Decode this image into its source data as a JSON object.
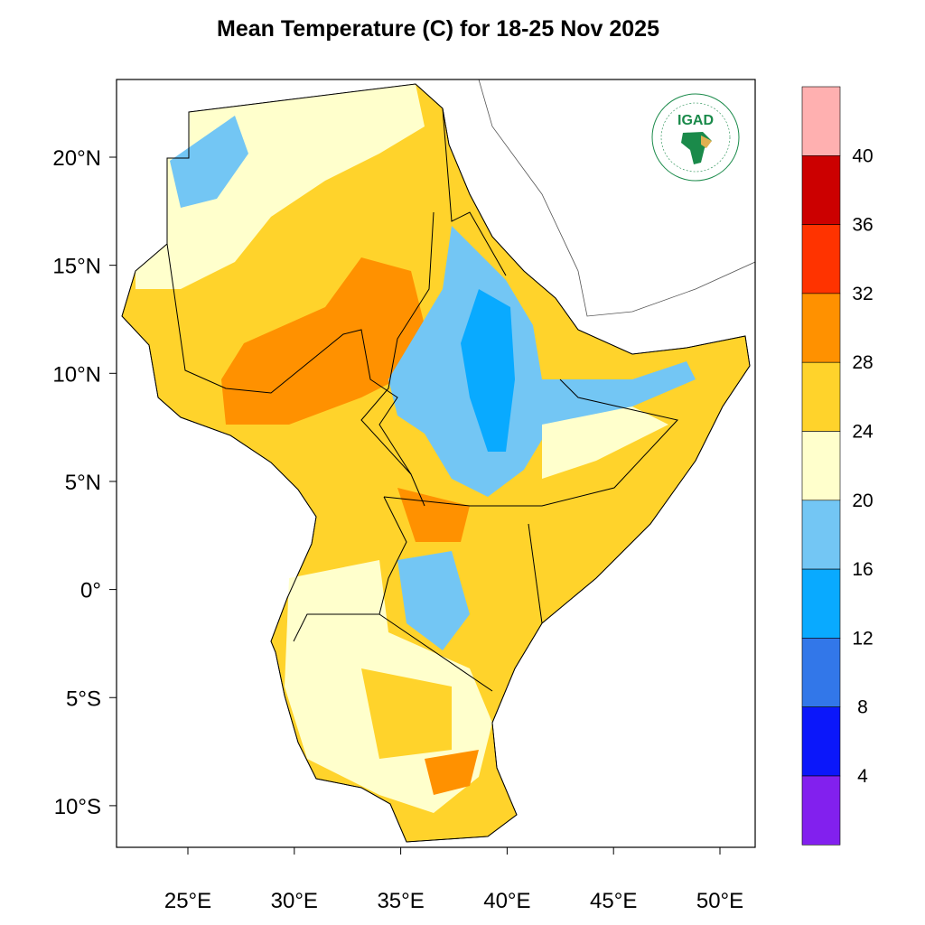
{
  "title": "Mean Temperature (C) for 18-25 Nov 2025",
  "map": {
    "region": "Greater Horn of Africa",
    "lon_ticks": [
      "25°E",
      "30°E",
      "35°E",
      "40°E",
      "45°E",
      "50°E"
    ],
    "lat_ticks": [
      "20°N",
      "15°N",
      "10°N",
      "5°N",
      "0°",
      "5°S",
      "10°S"
    ],
    "lon_range": [
      21.7,
      51.7
    ],
    "lat_range": [
      -11.9,
      23.6
    ]
  },
  "logo": {
    "name": "IGAD",
    "text": "IGAD",
    "ring_top": "INTERGOVERNMENTAL AUTHORITY ON DEVELOPMENT",
    "ring_bottom": "AUTORITE INTERGOUVERNEMENTALE POUR LE DEVELOPPEMENT",
    "color": "#1a8a4a"
  },
  "colorbar": {
    "labels": [
      "40",
      "36",
      "32",
      "28",
      "24",
      "20",
      "16",
      "12",
      "8",
      "4"
    ],
    "colors": [
      "#ffb0b0",
      "#cc0000",
      "#ff3300",
      "#ff9100",
      "#ffd32b",
      "#ffffcc",
      "#73c6f4",
      "#09aaff",
      "#3277e9",
      "#0b17fa",
      "#8220ee"
    ]
  }
}
